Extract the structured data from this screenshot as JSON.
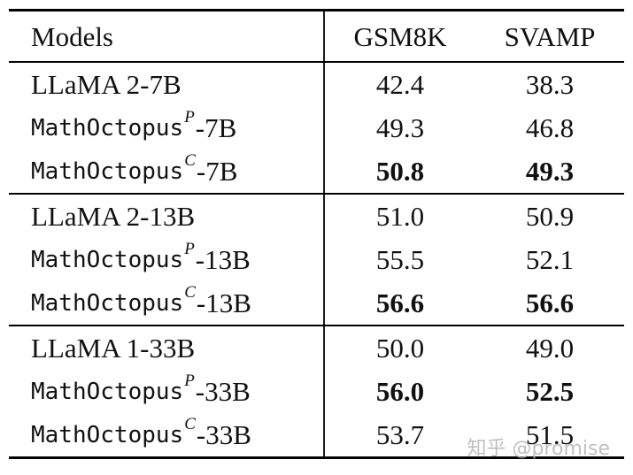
{
  "table": {
    "columns": [
      "Models",
      "GSM8K",
      "SVAMP"
    ],
    "groups": [
      {
        "rows": [
          {
            "name": "LLaMA 2-7B",
            "font": "serif",
            "sup": "",
            "suffix": "",
            "gsm8k": "42.4",
            "svamp": "38.3",
            "bold": false
          },
          {
            "name": "MathOctopus",
            "font": "mono",
            "sup": "P",
            "suffix": "-7B",
            "gsm8k": "49.3",
            "svamp": "46.8",
            "bold": false
          },
          {
            "name": "MathOctopus",
            "font": "mono",
            "sup": "C",
            "suffix": "-7B",
            "gsm8k": "50.8",
            "svamp": "49.3",
            "bold": true
          }
        ]
      },
      {
        "rows": [
          {
            "name": "LLaMA 2-13B",
            "font": "serif",
            "sup": "",
            "suffix": "",
            "gsm8k": "51.0",
            "svamp": "50.9",
            "bold": false
          },
          {
            "name": "MathOctopus",
            "font": "mono",
            "sup": "P",
            "suffix": "-13B",
            "gsm8k": "55.5",
            "svamp": "52.1",
            "bold": false
          },
          {
            "name": "MathOctopus",
            "font": "mono",
            "sup": "C",
            "suffix": "-13B",
            "gsm8k": "56.6",
            "svamp": "56.6",
            "bold": true
          }
        ]
      },
      {
        "rows": [
          {
            "name": "LLaMA 1-33B",
            "font": "serif",
            "sup": "",
            "suffix": "",
            "gsm8k": "50.0",
            "svamp": "49.0",
            "bold": false
          },
          {
            "name": "MathOctopus",
            "font": "mono",
            "sup": "P",
            "suffix": "-33B",
            "gsm8k": "56.0",
            "svamp": "52.5",
            "bold": true
          },
          {
            "name": "MathOctopus",
            "font": "mono",
            "sup": "C",
            "suffix": "-33B",
            "gsm8k": "53.7",
            "svamp": "51.5",
            "bold": false
          }
        ]
      }
    ]
  },
  "watermark": {
    "text": "知乎 @promise",
    "color": "#b5b5b5"
  }
}
